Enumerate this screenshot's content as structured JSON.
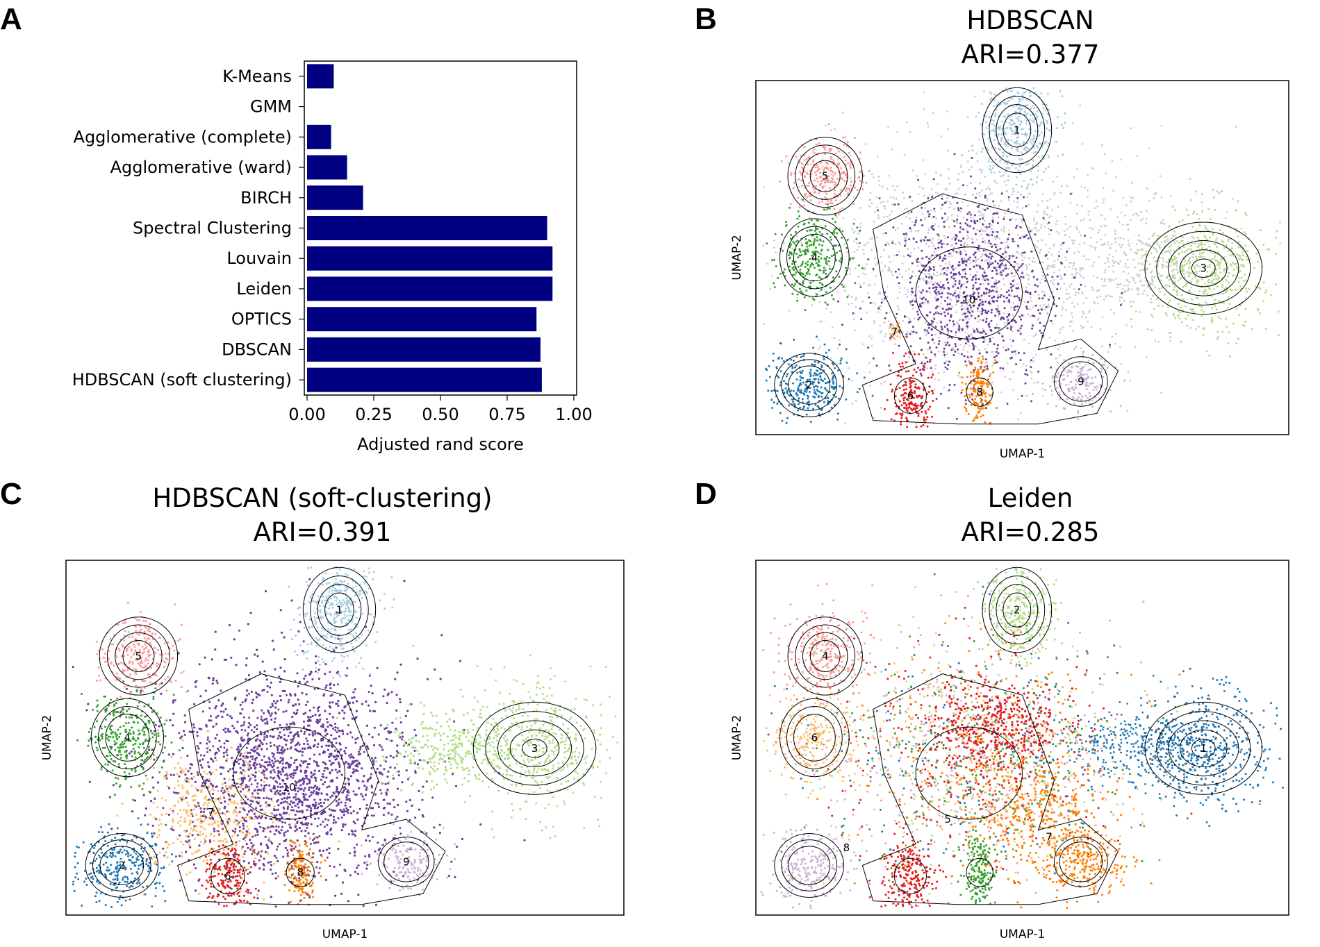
{
  "panels": {
    "A": "A",
    "B": "B",
    "C": "C",
    "D": "D"
  },
  "chart_data": [
    {
      "panel": "A",
      "type": "bar",
      "orientation": "horizontal",
      "categories": [
        "K-Means",
        "GMM",
        "Agglomerative (complete)",
        "Agglomerative (ward)",
        "BIRCH",
        "Spectral Clustering",
        "Louvain",
        "Leiden",
        "OPTICS",
        "DBSCAN",
        "HDBSCAN (soft clustering)"
      ],
      "values": [
        0.1,
        0.0,
        0.09,
        0.15,
        0.21,
        0.9,
        0.92,
        0.92,
        0.86,
        0.875,
        0.88
      ],
      "xlabel": "Adjusted rand score",
      "xlim": [
        0,
        1.0
      ],
      "xticks": [
        "0.00",
        "0.25",
        "0.50",
        "0.75",
        "1.00"
      ],
      "color": "#000080",
      "grid": false
    },
    {
      "panel": "B",
      "type": "scatter",
      "title": "HDBSCAN",
      "subtitle": "ARI=0.377",
      "xlabel": "UMAP-1",
      "ylabel": "UMAP-2",
      "clusters": [
        {
          "label": "1",
          "color": "#a6cee3"
        },
        {
          "label": "2",
          "color": "#1f78b4"
        },
        {
          "label": "3",
          "color": "#b2df8a"
        },
        {
          "label": "4",
          "color": "#33a02c"
        },
        {
          "label": "5",
          "color": "#fb9a99"
        },
        {
          "label": "6",
          "color": "#e31a1c"
        },
        {
          "label": "7",
          "color": "#fdbf6f"
        },
        {
          "label": "8",
          "color": "#ff7f00"
        },
        {
          "label": "9",
          "color": "#cab2d6"
        },
        {
          "label": "10",
          "color": "#6a3d9a"
        }
      ],
      "noise_color": "#cccccc"
    },
    {
      "panel": "C",
      "type": "scatter",
      "title": "HDBSCAN (soft-clustering)",
      "subtitle": "ARI=0.391",
      "xlabel": "UMAP-1",
      "ylabel": "UMAP-2",
      "clusters": [
        {
          "label": "1",
          "color": "#a6cee3"
        },
        {
          "label": "2",
          "color": "#1f78b4"
        },
        {
          "label": "3",
          "color": "#b2df8a"
        },
        {
          "label": "4",
          "color": "#33a02c"
        },
        {
          "label": "5",
          "color": "#fb9a99"
        },
        {
          "label": "6",
          "color": "#e31a1c"
        },
        {
          "label": "7",
          "color": "#fdbf6f"
        },
        {
          "label": "8",
          "color": "#ff7f00"
        },
        {
          "label": "9",
          "color": "#cab2d6"
        },
        {
          "label": "10",
          "color": "#6a3d9a"
        }
      ]
    },
    {
      "panel": "D",
      "type": "scatter",
      "title": "Leiden",
      "subtitle": "ARI=0.285",
      "xlabel": "UMAP-1",
      "ylabel": "UMAP-2",
      "clusters": [
        {
          "label": "1",
          "color": "#1f78b4"
        },
        {
          "label": "2",
          "color": "#b2df8a"
        },
        {
          "label": "3",
          "color": "#e31a1c"
        },
        {
          "label": "4",
          "color": "#fb9a99"
        },
        {
          "label": "5",
          "color": "#33a02c"
        },
        {
          "label": "6",
          "color": "#fdbf6f"
        },
        {
          "label": "7",
          "color": "#ff7f00"
        },
        {
          "label": "8",
          "color": "#cab2d6"
        }
      ]
    }
  ]
}
